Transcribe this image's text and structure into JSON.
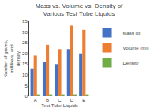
{
  "chart_data": {
    "type": "bar",
    "title": "Mass vs. Volume vs. Density of Various Test Tube Liquids",
    "xlabel": "Test Tube Liquids",
    "ylabel": "Number of grams, milliliters, and density",
    "categories": [
      "A",
      "B",
      "C",
      "D",
      "E"
    ],
    "series": [
      {
        "name": "Mass (g)",
        "color": "#4472c4",
        "values": [
          13,
          16,
          15,
          22,
          20
        ]
      },
      {
        "name": "Volume (ml)",
        "color": "#ed7d31",
        "values": [
          19,
          24,
          22,
          33,
          31
        ]
      },
      {
        "name": "Density",
        "color": "#70ad47",
        "values": [
          0.9,
          0.9,
          0.9,
          0.9,
          0.9
        ]
      }
    ],
    "ylim": [
      0,
      35
    ],
    "yticks": [
      0,
      5,
      10,
      15,
      20,
      25,
      30,
      35
    ],
    "grid": false,
    "legend": "right"
  }
}
